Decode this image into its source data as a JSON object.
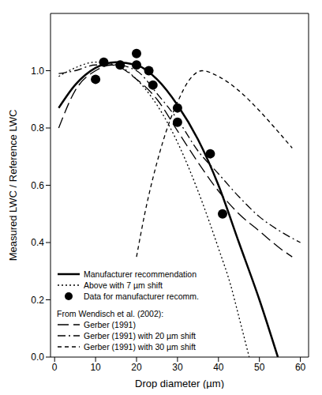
{
  "chart_data": {
    "type": "line",
    "xlabel": "Drop diameter (µm)",
    "ylabel": "Measured LWC / Reference LWC",
    "xlim": [
      -1,
      62
    ],
    "xticks": [
      0,
      10,
      20,
      30,
      40,
      50,
      60
    ],
    "ylim": [
      0,
      1.2
    ],
    "yticks": [
      {
        "value": 0,
        "label": "0.0"
      },
      {
        "value": 0.2,
        "label": "0.2"
      },
      {
        "value": 0.4,
        "label": "0.4"
      },
      {
        "value": 0.6,
        "label": "0.6"
      },
      {
        "value": 0.8,
        "label": "0.8"
      },
      {
        "value": 1.0,
        "label": "1.0"
      }
    ],
    "grid": false,
    "legend": "lower left",
    "annotation": "From Wendisch et al. (2002):",
    "series": [
      {
        "name": "Manufacturer recommendation",
        "type": "line",
        "color": "#000000",
        "line_style": "solid",
        "x": [
          1,
          5,
          10,
          15,
          20,
          25,
          30,
          35,
          40,
          45,
          50,
          54.5
        ],
        "values": [
          0.87,
          0.95,
          1.01,
          1.03,
          1.02,
          0.97,
          0.88,
          0.76,
          0.6,
          0.4,
          0.2,
          0.0
        ]
      },
      {
        "name": "Above with 7 µm shift",
        "type": "line",
        "color": "#000000",
        "line_style": "dotted",
        "x": [
          1,
          5,
          10,
          15,
          20,
          25,
          30,
          35,
          40,
          43,
          45,
          47.5
        ],
        "values": [
          0.98,
          1.01,
          1.03,
          1.02,
          0.97,
          0.88,
          0.75,
          0.58,
          0.38,
          0.25,
          0.14,
          0.0
        ]
      },
      {
        "name": "Data for manufacturer recomm.",
        "type": "scatter",
        "color": "#000000",
        "marker": "circle",
        "x": [
          10,
          12,
          16,
          20,
          20,
          23,
          24,
          30,
          30,
          38,
          41
        ],
        "values": [
          0.97,
          1.03,
          1.02,
          1.02,
          1.06,
          1.0,
          0.95,
          0.87,
          0.82,
          0.71,
          0.5
        ]
      },
      {
        "name": "Gerber (1991)",
        "type": "line",
        "color": "#000000",
        "line_style": "long_dash",
        "x": [
          1,
          5,
          10,
          14,
          20,
          25,
          30,
          35,
          40,
          45,
          50,
          55,
          58
        ],
        "values": [
          0.8,
          0.93,
          1.0,
          1.02,
          0.97,
          0.9,
          0.79,
          0.68,
          0.58,
          0.5,
          0.44,
          0.38,
          0.35
        ]
      },
      {
        "name": "Gerber (1991) with 20 µm shift",
        "type": "line",
        "color": "#000000",
        "line_style": "dashdot",
        "x": [
          1,
          5,
          10,
          15,
          20,
          25,
          30,
          35,
          40,
          45,
          50,
          55,
          60
        ],
        "values": [
          0.99,
          1.0,
          1.02,
          1.02,
          1.0,
          0.92,
          0.83,
          0.72,
          0.64,
          0.56,
          0.49,
          0.44,
          0.4
        ]
      },
      {
        "name": "Gerber (1991) with 30 µm shift",
        "type": "line",
        "color": "#000000",
        "line_style": "dashed",
        "x": [
          20,
          22,
          25,
          28,
          30,
          33,
          36,
          40,
          45,
          50,
          55,
          58
        ],
        "values": [
          0.35,
          0.5,
          0.68,
          0.82,
          0.89,
          0.97,
          1.0,
          0.98,
          0.93,
          0.86,
          0.78,
          0.73
        ]
      }
    ]
  }
}
